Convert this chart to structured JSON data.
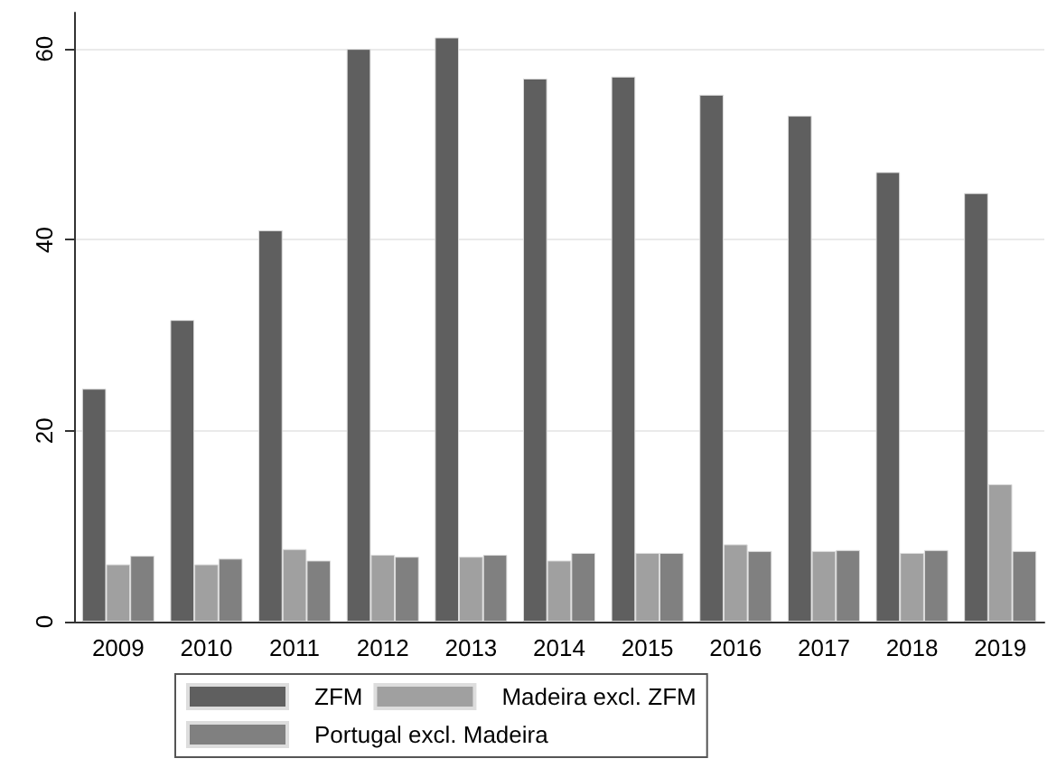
{
  "chart_data": {
    "type": "bar",
    "categories": [
      "2009",
      "2010",
      "2011",
      "2012",
      "2013",
      "2014",
      "2015",
      "2016",
      "2017",
      "2018",
      "2019"
    ],
    "series": [
      {
        "name": "ZFM",
        "color": "#5f5f5f",
        "values": [
          24.4,
          31.6,
          41.0,
          60.0,
          61.2,
          56.9,
          57.1,
          55.2,
          53.0,
          47.1,
          44.9
        ]
      },
      {
        "name": "Madeira excl. ZFM",
        "color": "#a0a0a0",
        "values": [
          6.0,
          6.0,
          7.6,
          7.0,
          6.8,
          6.4,
          7.2,
          8.1,
          7.4,
          7.2,
          14.4
        ]
      },
      {
        "name": "Portugal excl. Madeira",
        "color": "#808080",
        "values": [
          6.9,
          6.6,
          6.4,
          6.8,
          7.0,
          7.2,
          7.2,
          7.4,
          7.5,
          7.5,
          7.4
        ]
      }
    ],
    "ylim": [
      0,
      63.8
    ],
    "yticks": [
      0,
      20,
      40,
      60
    ],
    "grid": "y",
    "legend": "bottom"
  }
}
